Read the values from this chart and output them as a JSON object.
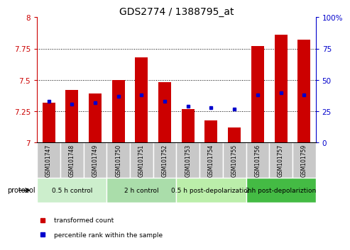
{
  "title": "GDS2774 / 1388795_at",
  "samples": [
    "GSM101747",
    "GSM101748",
    "GSM101749",
    "GSM101750",
    "GSM101751",
    "GSM101752",
    "GSM101753",
    "GSM101754",
    "GSM101755",
    "GSM101756",
    "GSM101757",
    "GSM101759"
  ],
  "red_values": [
    7.32,
    7.42,
    7.39,
    7.5,
    7.68,
    7.48,
    7.27,
    7.18,
    7.12,
    7.77,
    7.86,
    7.82
  ],
  "blue_values": [
    33,
    31,
    32,
    37,
    38,
    33,
    29,
    28,
    27,
    38,
    40,
    38
  ],
  "ymin": 7.0,
  "ymax": 8.0,
  "y2min": 0,
  "y2max": 100,
  "yticks": [
    7.0,
    7.25,
    7.5,
    7.75,
    8.0
  ],
  "y2ticks": [
    0,
    25,
    50,
    75,
    100
  ],
  "ytick_labels": [
    "7",
    "7.25",
    "7.5",
    "7.75",
    "8"
  ],
  "y2tick_labels": [
    "0",
    "25",
    "50",
    "75",
    "100%"
  ],
  "red_color": "#cc0000",
  "blue_color": "#0000cc",
  "bar_bg_color": "#c8c8c8",
  "protocol_groups": [
    {
      "label": "0.5 h control",
      "start": 0,
      "end": 3,
      "color": "#cceecc"
    },
    {
      "label": "2 h control",
      "start": 3,
      "end": 6,
      "color": "#aaddaa"
    },
    {
      "label": "0.5 h post-depolarization",
      "start": 6,
      "end": 9,
      "color": "#bbeeaa"
    },
    {
      "label": "2 h post-depolariztion",
      "start": 9,
      "end": 12,
      "color": "#44bb44"
    }
  ],
  "protocol_label": "protocol",
  "legend1": "transformed count",
  "legend2": "percentile rank within the sample",
  "bar_width": 0.55,
  "title_fontsize": 10,
  "tick_fontsize": 7.5,
  "sample_fontsize": 5.5,
  "proto_fontsize": 6.5
}
